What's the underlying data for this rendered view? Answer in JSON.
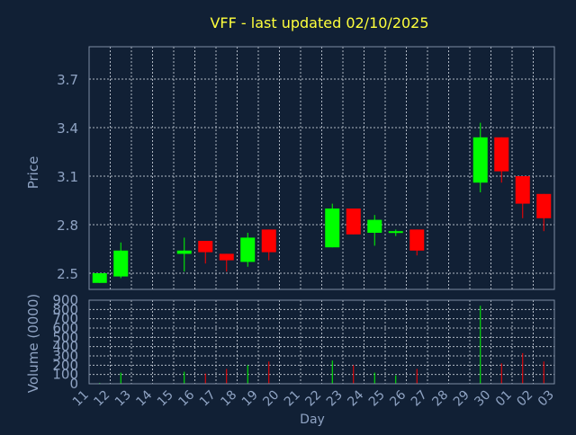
{
  "chart_data": {
    "type": "candlestick",
    "title": "VFF - last updated 02/10/2025",
    "colors": {
      "background": "#112035",
      "frame": "#7d8da3",
      "grid": "#b0b8c4",
      "text": "#8fa3c3",
      "title": "#ffff3c",
      "up": "#00ff00",
      "down": "#ff0000"
    },
    "price_panel": {
      "ylabel": "Price",
      "ylim": [
        2.4,
        3.9
      ],
      "yticks": [
        2.5,
        2.8,
        3.1,
        3.4,
        3.7
      ],
      "ytick_labels": [
        "2.5",
        "2.8",
        "3.1",
        "3.4",
        "3.7"
      ],
      "grid": true
    },
    "volume_panel": {
      "ylabel": "Volume (0000)",
      "ylim": [
        0,
        900
      ],
      "yticks": [
        0,
        100,
        200,
        300,
        400,
        500,
        600,
        700,
        800,
        900
      ],
      "ytick_labels": [
        "0",
        "100",
        "200",
        "300",
        "400",
        "500",
        "600",
        "700",
        "800",
        "900"
      ],
      "grid": true
    },
    "xlabel": "Day",
    "x_ticks": [
      "11",
      "12",
      "13",
      "14",
      "15",
      "16",
      "17",
      "18",
      "19",
      "20",
      "21",
      "22",
      "23",
      "24",
      "25",
      "26",
      "27",
      "28",
      "29",
      "30",
      "01",
      "02",
      "03"
    ],
    "candles": [
      {
        "x": "11",
        "open": 2.44,
        "high": 2.5,
        "low": 2.44,
        "close": 2.5,
        "volume": 10
      },
      {
        "x": "12",
        "open": 2.48,
        "high": 2.69,
        "low": 2.47,
        "close": 2.64,
        "volume": 120
      },
      {
        "x": "15",
        "open": 2.62,
        "high": 2.72,
        "low": 2.51,
        "close": 2.64,
        "volume": 130
      },
      {
        "x": "16",
        "open": 2.7,
        "high": 2.7,
        "low": 2.56,
        "close": 2.63,
        "volume": 110
      },
      {
        "x": "17",
        "open": 2.62,
        "high": 2.62,
        "low": 2.51,
        "close": 2.58,
        "volume": 160
      },
      {
        "x": "18",
        "open": 2.57,
        "high": 2.75,
        "low": 2.54,
        "close": 2.72,
        "volume": 200
      },
      {
        "x": "19",
        "open": 2.77,
        "high": 2.77,
        "low": 2.58,
        "close": 2.63,
        "volume": 240
      },
      {
        "x": "22",
        "open": 2.66,
        "high": 2.93,
        "low": 2.66,
        "close": 2.9,
        "volume": 250
      },
      {
        "x": "23",
        "open": 2.9,
        "high": 2.9,
        "low": 2.74,
        "close": 2.74,
        "volume": 200
      },
      {
        "x": "24",
        "open": 2.75,
        "high": 2.86,
        "low": 2.67,
        "close": 2.83,
        "volume": 120
      },
      {
        "x": "25",
        "open": 2.75,
        "high": 2.77,
        "low": 2.73,
        "close": 2.76,
        "volume": 90
      },
      {
        "x": "26",
        "open": 2.77,
        "high": 2.77,
        "low": 2.61,
        "close": 2.64,
        "volume": 160
      },
      {
        "x": "29",
        "open": 3.06,
        "high": 3.43,
        "low": 3.0,
        "close": 3.34,
        "volume": 840
      },
      {
        "x": "30",
        "open": 3.34,
        "high": 3.34,
        "low": 3.06,
        "close": 3.13,
        "volume": 220
      },
      {
        "x": "01",
        "open": 3.1,
        "high": 3.1,
        "low": 2.84,
        "close": 2.93,
        "volume": 330
      },
      {
        "x": "02",
        "open": 2.99,
        "high": 2.99,
        "low": 2.76,
        "close": 2.84,
        "volume": 240
      }
    ]
  }
}
